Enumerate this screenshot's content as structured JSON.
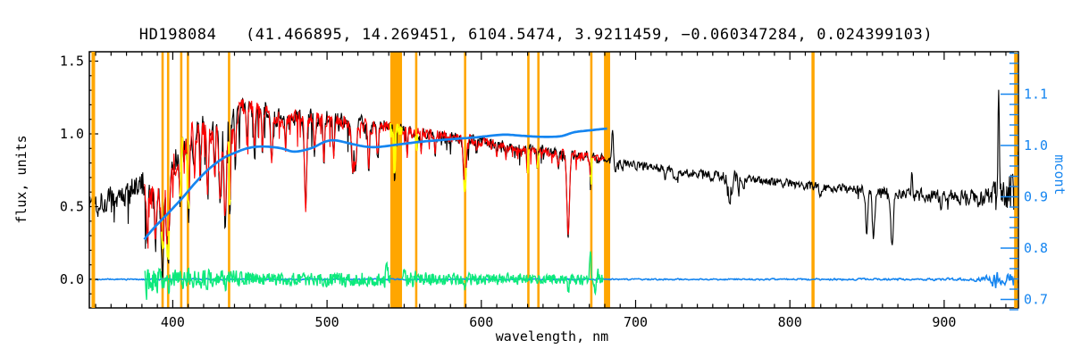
{
  "chart_data": {
    "type": "line",
    "title": "HD198084   (41.466895, 14.269451, 6104.5474, 3.9211459, −0.060347284, 0.024399103)",
    "xlabel": "wavelength, nm",
    "ylabel_left": "flux, units",
    "ylabel_right": "mcont",
    "xlim": [
      345.9,
      948.1
    ],
    "ylim_left": [
      -0.196,
      1.564
    ],
    "ylim_right": [
      0.684,
      1.183
    ],
    "xticks": [
      400,
      500,
      600,
      700,
      800,
      900
    ],
    "x_minor_step": 10,
    "yticks_left": [
      0.0,
      0.5,
      1.0,
      1.5
    ],
    "y_left_minor_step": 0.1,
    "yticks_right": [
      0.7,
      0.8,
      0.9,
      1.0,
      1.1
    ],
    "y_right_minor_step": 0.02,
    "grid": false,
    "legend": "none",
    "colors": {
      "observed": "#000000",
      "model": "#ff0000",
      "residual": "#0ce97c",
      "continuum": "#1585f0",
      "masked": "#ffa600",
      "masked_highlight": "#ffff00",
      "frame": "#000000",
      "background": "#ffffff"
    },
    "series": {
      "observed_spectrum": {
        "label": "observed flux",
        "color": "#000000",
        "range": [
          345.9,
          948.1
        ],
        "continuum_anchors": [
          [
            346,
            0.53
          ],
          [
            358,
            0.54
          ],
          [
            366,
            0.56
          ],
          [
            374,
            0.6
          ],
          [
            380,
            0.64
          ],
          [
            385,
            0.62
          ],
          [
            390,
            0.66
          ],
          [
            396,
            0.7
          ],
          [
            402,
            0.82
          ],
          [
            408,
            0.92
          ],
          [
            413,
            1.0
          ],
          [
            420,
            1.03
          ],
          [
            428,
            1.02
          ],
          [
            436,
            1.08
          ],
          [
            444,
            1.17
          ],
          [
            452,
            1.18
          ],
          [
            460,
            1.14
          ],
          [
            468,
            1.11
          ],
          [
            478,
            1.1
          ],
          [
            488,
            1.12
          ],
          [
            498,
            1.11
          ],
          [
            508,
            1.09
          ],
          [
            518,
            1.07
          ],
          [
            528,
            1.05
          ],
          [
            538,
            1.04
          ],
          [
            548,
            1.03
          ],
          [
            558,
            1.02
          ],
          [
            568,
            1.0
          ],
          [
            578,
            0.98
          ],
          [
            588,
            0.97
          ],
          [
            598,
            0.95
          ],
          [
            608,
            0.93
          ],
          [
            618,
            0.91
          ],
          [
            628,
            0.9
          ],
          [
            638,
            0.89
          ],
          [
            648,
            0.87
          ],
          [
            658,
            0.86
          ],
          [
            668,
            0.85
          ],
          [
            678,
            0.83
          ],
          [
            685,
            0.81
          ],
          [
            695,
            0.79
          ],
          [
            710,
            0.77
          ],
          [
            725,
            0.75
          ],
          [
            740,
            0.73
          ],
          [
            752,
            0.71
          ],
          [
            765,
            0.7
          ],
          [
            780,
            0.68
          ],
          [
            800,
            0.66
          ],
          [
            815,
            0.645
          ],
          [
            830,
            0.63
          ],
          [
            845,
            0.615
          ],
          [
            860,
            0.6
          ],
          [
            875,
            0.59
          ],
          [
            890,
            0.575
          ],
          [
            905,
            0.565
          ],
          [
            915,
            0.56
          ],
          [
            925,
            0.565
          ],
          [
            933,
            0.58
          ],
          [
            940,
            0.6
          ],
          [
            946,
            0.62
          ],
          [
            949,
            0.63
          ]
        ],
        "noise_anchors": [
          [
            346,
            0.085
          ],
          [
            370,
            0.08
          ],
          [
            385,
            0.1
          ],
          [
            395,
            0.11
          ],
          [
            405,
            0.1
          ],
          [
            415,
            0.08
          ],
          [
            425,
            0.085
          ],
          [
            435,
            0.08
          ],
          [
            445,
            0.065
          ],
          [
            460,
            0.06
          ],
          [
            480,
            0.055
          ],
          [
            500,
            0.05
          ],
          [
            520,
            0.05
          ],
          [
            540,
            0.045
          ],
          [
            560,
            0.04
          ],
          [
            580,
            0.04
          ],
          [
            600,
            0.035
          ],
          [
            620,
            0.033
          ],
          [
            640,
            0.03
          ],
          [
            660,
            0.03
          ],
          [
            680,
            0.028
          ],
          [
            700,
            0.025
          ],
          [
            720,
            0.025
          ],
          [
            740,
            0.027
          ],
          [
            754,
            0.035
          ],
          [
            761,
            0.055
          ],
          [
            768,
            0.03
          ],
          [
            780,
            0.027
          ],
          [
            800,
            0.027
          ],
          [
            820,
            0.028
          ],
          [
            840,
            0.028
          ],
          [
            860,
            0.033
          ],
          [
            880,
            0.035
          ],
          [
            900,
            0.04
          ],
          [
            915,
            0.048
          ],
          [
            925,
            0.055
          ],
          [
            931,
            0.065
          ],
          [
            935,
            0.1
          ],
          [
            939,
            0.09
          ],
          [
            943,
            0.16
          ],
          [
            947,
            0.28
          ],
          [
            949,
            0.3
          ]
        ]
      },
      "model_spectrum": {
        "label": "fitted model flux",
        "color": "#ff0000",
        "range": [
          381.5,
          679.8
        ]
      },
      "residual": {
        "label": "fit residual",
        "color": "#0ce97c",
        "mean": 0.0,
        "range": [
          382.0,
          679.0
        ],
        "noise_anchors": [
          [
            382,
            0.1
          ],
          [
            390,
            0.07
          ],
          [
            400,
            0.06
          ],
          [
            420,
            0.055
          ],
          [
            440,
            0.05
          ],
          [
            470,
            0.04
          ],
          [
            500,
            0.042
          ],
          [
            530,
            0.045
          ],
          [
            552,
            0.05
          ],
          [
            570,
            0.035
          ],
          [
            600,
            0.033
          ],
          [
            630,
            0.028
          ],
          [
            655,
            0.03
          ],
          [
            679,
            0.035
          ]
        ],
        "spikes": [
          [
            383.0,
            -0.1,
            0.5
          ],
          [
            393.4,
            -0.12,
            0.5
          ],
          [
            397.0,
            -0.1,
            0.5
          ],
          [
            410.2,
            0.08,
            0.4
          ],
          [
            434.0,
            -0.08,
            0.4
          ],
          [
            486.1,
            -0.05,
            0.4
          ],
          [
            538.8,
            0.14,
            0.5
          ],
          [
            549.3,
            0.1,
            0.5
          ],
          [
            589.3,
            -0.06,
            0.4
          ],
          [
            656.3,
            -0.12,
            0.4
          ],
          [
            670.6,
            0.22,
            0.5
          ],
          [
            673.8,
            -0.1,
            0.4
          ],
          [
            675.8,
            0.1,
            0.4
          ]
        ]
      },
      "continuum_mcont": {
        "label": "mcont continuum",
        "color": "#1585f0",
        "axis": "right",
        "points": [
          [
            381.5,
            0.817
          ],
          [
            388,
            0.84
          ],
          [
            397,
            0.868
          ],
          [
            406,
            0.897
          ],
          [
            414.5,
            0.927
          ],
          [
            423,
            0.953
          ],
          [
            432,
            0.974
          ],
          [
            440.5,
            0.986
          ],
          [
            449,
            0.995
          ],
          [
            458,
            0.998
          ],
          [
            469.5,
            0.995
          ],
          [
            479,
            0.988
          ],
          [
            490,
            0.995
          ],
          [
            498.4,
            1.007
          ],
          [
            505.4,
            1.01
          ],
          [
            516,
            1.003
          ],
          [
            524.5,
            0.998
          ],
          [
            533,
            0.997
          ],
          [
            546.5,
            1.002
          ],
          [
            560,
            1.007
          ],
          [
            579.5,
            1.012
          ],
          [
            597,
            1.016
          ],
          [
            614,
            1.021
          ],
          [
            626,
            1.019
          ],
          [
            637,
            1.017
          ],
          [
            647,
            1.017
          ],
          [
            653,
            1.019
          ],
          [
            660.6,
            1.026
          ],
          [
            672,
            1.03
          ],
          [
            681.5,
            1.033
          ]
        ]
      },
      "zero_line": {
        "label": "zero flux line",
        "color": "#1585f0",
        "flux": 0.0,
        "range": [
          345.9,
          948.1
        ],
        "noise_anchors": [
          [
            346,
            0.004
          ],
          [
            680,
            0.004
          ],
          [
            800,
            0.005
          ],
          [
            880,
            0.006
          ],
          [
            915,
            0.008
          ],
          [
            925,
            0.015
          ],
          [
            930,
            0.03
          ],
          [
            933.5,
            0.075
          ],
          [
            936,
            0.035
          ],
          [
            940,
            0.03
          ],
          [
            944,
            0.045
          ],
          [
            948,
            0.05
          ]
        ]
      }
    },
    "absorption_lines": [
      [
        383.5,
        0.34,
        0.7
      ],
      [
        388.9,
        0.27,
        0.7
      ],
      [
        393.4,
        0.15,
        1.0
      ],
      [
        396.9,
        0.15,
        1.0
      ],
      [
        404.6,
        0.55,
        0.5
      ],
      [
        410.2,
        0.46,
        0.7
      ],
      [
        414.0,
        0.72,
        0.5
      ],
      [
        417.9,
        0.78,
        0.5
      ],
      [
        422.7,
        0.58,
        0.6
      ],
      [
        427.2,
        0.7,
        0.5
      ],
      [
        430.8,
        0.6,
        0.9
      ],
      [
        434.0,
        0.42,
        0.8
      ],
      [
        437.0,
        0.5,
        0.5
      ],
      [
        440.5,
        0.78,
        0.5
      ],
      [
        448.0,
        0.9,
        0.5
      ],
      [
        453.0,
        0.88,
        0.5
      ],
      [
        458.1,
        0.86,
        0.5
      ],
      [
        464.0,
        0.84,
        0.6
      ],
      [
        473.0,
        0.88,
        0.5
      ],
      [
        486.1,
        0.47,
        0.7
      ],
      [
        492.0,
        0.86,
        0.5
      ],
      [
        498.0,
        0.84,
        0.5
      ],
      [
        504.2,
        0.86,
        0.5
      ],
      [
        516.7,
        0.76,
        0.7
      ],
      [
        518.4,
        0.74,
        0.7
      ],
      [
        527.0,
        0.76,
        0.5
      ],
      [
        532.8,
        0.83,
        0.5
      ],
      [
        543.8,
        0.72,
        0.45
      ],
      [
        552.0,
        0.87,
        0.4
      ],
      [
        558.0,
        0.86,
        0.4
      ],
      [
        561.0,
        0.89,
        0.35
      ],
      [
        570.0,
        0.87,
        0.4
      ],
      [
        589.3,
        0.63,
        0.9
      ],
      [
        597.0,
        0.87,
        0.4
      ],
      [
        610.0,
        0.85,
        0.4
      ],
      [
        616.0,
        0.86,
        0.4
      ],
      [
        629.8,
        0.76,
        0.45
      ],
      [
        636.3,
        0.78,
        0.45
      ],
      [
        644.0,
        0.84,
        0.4
      ],
      [
        649.9,
        0.78,
        0.45
      ],
      [
        656.3,
        0.28,
        0.8
      ],
      [
        662.0,
        0.83,
        0.4
      ],
      [
        670.8,
        0.7,
        0.5
      ],
      [
        686.7,
        0.72,
        0.5
      ],
      [
        719.0,
        0.7,
        0.6
      ],
      [
        725.5,
        0.68,
        1.0
      ],
      [
        760.8,
        0.57,
        1.2
      ],
      [
        766.8,
        0.62,
        0.5
      ],
      [
        770.1,
        0.63,
        0.4
      ],
      [
        820.0,
        0.59,
        1.0
      ],
      [
        849.8,
        0.33,
        0.7
      ],
      [
        854.2,
        0.29,
        0.8
      ],
      [
        866.2,
        0.24,
        0.8
      ],
      [
        898.0,
        0.52,
        0.8
      ]
    ],
    "emission_spikes": [
      [
        685.0,
        0.22,
        0.5
      ],
      [
        879.0,
        0.12,
        0.4
      ],
      [
        935.3,
        0.75,
        0.45
      ]
    ],
    "masked_regions": {
      "color": "#ffa600",
      "lines": [
        348.5,
        393.4,
        397.0,
        405.5,
        409.8,
        436.5,
        557.8,
        589.5,
        630.5,
        637.0,
        671.3,
        815.0,
        946.5
      ],
      "line_widths": [
        4,
        2.6,
        2.6,
        2.6,
        2.6,
        2.6,
        2.6,
        2.6,
        2.6,
        2.6,
        2.6,
        3.5,
        4
      ],
      "bands": [
        [
          541.0,
          548.6
        ],
        [
          679.5,
          683.5
        ]
      ],
      "highlight_color": "#ffff00",
      "highlight_halfwidth_nm": 0.9
    }
  }
}
